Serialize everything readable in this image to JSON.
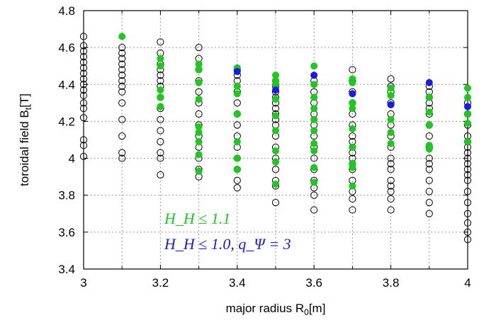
{
  "chart_data": {
    "type": "scatter",
    "xlabel": "major radius R",
    "xlabel_sub": "0",
    "xlabel_unit": "[m]",
    "ylabel": "toroidal field B",
    "ylabel_sub": "t",
    "ylabel_unit": "[T]",
    "xlim": [
      3,
      4
    ],
    "ylim": [
      3.4,
      4.8
    ],
    "xticks": [
      "3",
      "3.2",
      "3.4",
      "3.6",
      "3.8",
      "4"
    ],
    "yticks": [
      "3.4",
      "3.6",
      "3.8",
      "4",
      "4.2",
      "4.4",
      "4.6",
      "4.8"
    ],
    "grid": true,
    "colors": {
      "all": "#000000",
      "hh11": "#1ec81e",
      "hh10": "#1a1ae6"
    },
    "legend": [
      {
        "series": "hh11",
        "text": "H_H ≤ 1.1"
      },
      {
        "series": "hh10",
        "text": "H_H ≤ 1.0, q_Ψ = 3"
      }
    ],
    "series": [
      {
        "key": "all",
        "style": "open-circle",
        "points": [
          [
            3.0,
            4.66
          ],
          [
            3.0,
            4.61
          ],
          [
            3.0,
            4.58
          ],
          [
            3.0,
            4.55
          ],
          [
            3.0,
            4.52
          ],
          [
            3.0,
            4.49
          ],
          [
            3.0,
            4.46
          ],
          [
            3.0,
            4.43
          ],
          [
            3.0,
            4.4
          ],
          [
            3.0,
            4.37
          ],
          [
            3.0,
            4.34
          ],
          [
            3.0,
            4.3
          ],
          [
            3.0,
            4.27
          ],
          [
            3.0,
            4.22
          ],
          [
            3.0,
            4.1
          ],
          [
            3.0,
            4.07
          ],
          [
            3.0,
            4.01
          ],
          [
            3.1,
            4.6
          ],
          [
            3.1,
            4.57
          ],
          [
            3.1,
            4.54
          ],
          [
            3.1,
            4.51
          ],
          [
            3.1,
            4.48
          ],
          [
            3.1,
            4.45
          ],
          [
            3.1,
            4.42
          ],
          [
            3.1,
            4.39
          ],
          [
            3.1,
            4.36
          ],
          [
            3.1,
            4.3
          ],
          [
            3.1,
            4.21
          ],
          [
            3.1,
            4.12
          ],
          [
            3.1,
            4.03
          ],
          [
            3.1,
            4.0
          ],
          [
            3.2,
            4.63
          ],
          [
            3.2,
            4.57
          ],
          [
            3.2,
            4.51
          ],
          [
            3.2,
            4.48
          ],
          [
            3.2,
            4.45
          ],
          [
            3.2,
            4.42
          ],
          [
            3.2,
            4.39
          ],
          [
            3.2,
            4.33
          ],
          [
            3.2,
            4.27
          ],
          [
            3.2,
            4.21
          ],
          [
            3.2,
            4.15
          ],
          [
            3.2,
            4.09
          ],
          [
            3.2,
            4.03
          ],
          [
            3.2,
            4.0
          ],
          [
            3.2,
            3.91
          ],
          [
            3.3,
            4.6
          ],
          [
            3.3,
            4.54
          ],
          [
            3.3,
            4.48
          ],
          [
            3.3,
            4.42
          ],
          [
            3.3,
            4.36
          ],
          [
            3.3,
            4.3
          ],
          [
            3.3,
            4.24
          ],
          [
            3.3,
            4.18
          ],
          [
            3.3,
            4.12
          ],
          [
            3.3,
            4.06
          ],
          [
            3.3,
            4.0
          ],
          [
            3.3,
            3.94
          ],
          [
            3.3,
            3.9
          ],
          [
            3.4,
            4.48
          ],
          [
            3.4,
            4.45
          ],
          [
            3.4,
            4.42
          ],
          [
            3.4,
            4.36
          ],
          [
            3.4,
            4.3
          ],
          [
            3.4,
            4.24
          ],
          [
            3.4,
            4.18
          ],
          [
            3.4,
            4.12
          ],
          [
            3.4,
            4.06
          ],
          [
            3.4,
            4.0
          ],
          [
            3.4,
            3.94
          ],
          [
            3.4,
            3.88
          ],
          [
            3.4,
            3.84
          ],
          [
            3.5,
            4.42
          ],
          [
            3.5,
            4.39
          ],
          [
            3.5,
            4.36
          ],
          [
            3.5,
            4.33
          ],
          [
            3.5,
            4.3
          ],
          [
            3.5,
            4.27
          ],
          [
            3.5,
            4.24
          ],
          [
            3.5,
            4.21
          ],
          [
            3.5,
            4.18
          ],
          [
            3.5,
            4.12
          ],
          [
            3.5,
            4.06
          ],
          [
            3.5,
            4.0
          ],
          [
            3.5,
            3.94
          ],
          [
            3.5,
            3.88
          ],
          [
            3.5,
            3.85
          ],
          [
            3.5,
            3.76
          ],
          [
            3.6,
            4.42
          ],
          [
            3.6,
            4.36
          ],
          [
            3.6,
            4.3
          ],
          [
            3.6,
            4.24
          ],
          [
            3.6,
            4.18
          ],
          [
            3.6,
            4.12
          ],
          [
            3.6,
            4.06
          ],
          [
            3.6,
            4.0
          ],
          [
            3.6,
            3.94
          ],
          [
            3.6,
            3.88
          ],
          [
            3.6,
            3.84
          ],
          [
            3.6,
            3.8
          ],
          [
            3.6,
            3.72
          ],
          [
            3.7,
            4.48
          ],
          [
            3.7,
            4.42
          ],
          [
            3.7,
            4.36
          ],
          [
            3.7,
            4.3
          ],
          [
            3.7,
            4.24
          ],
          [
            3.7,
            4.18
          ],
          [
            3.7,
            4.12
          ],
          [
            3.7,
            4.09
          ],
          [
            3.7,
            4.06
          ],
          [
            3.7,
            4.03
          ],
          [
            3.7,
            4.0
          ],
          [
            3.7,
            3.97
          ],
          [
            3.7,
            3.94
          ],
          [
            3.7,
            3.88
          ],
          [
            3.7,
            3.82
          ],
          [
            3.7,
            3.78
          ],
          [
            3.7,
            3.72
          ],
          [
            3.8,
            4.43
          ],
          [
            3.8,
            4.39
          ],
          [
            3.8,
            4.36
          ],
          [
            3.8,
            4.3
          ],
          [
            3.8,
            4.24
          ],
          [
            3.8,
            4.18
          ],
          [
            3.8,
            4.12
          ],
          [
            3.8,
            4.06
          ],
          [
            3.8,
            4.0
          ],
          [
            3.8,
            3.97
          ],
          [
            3.8,
            3.94
          ],
          [
            3.8,
            3.88
          ],
          [
            3.8,
            3.85
          ],
          [
            3.8,
            3.82
          ],
          [
            3.8,
            3.78
          ],
          [
            3.8,
            3.72
          ],
          [
            3.9,
            4.39
          ],
          [
            3.9,
            4.36
          ],
          [
            3.9,
            4.33
          ],
          [
            3.9,
            4.3
          ],
          [
            3.9,
            4.27
          ],
          [
            3.9,
            4.24
          ],
          [
            3.9,
            4.18
          ],
          [
            3.9,
            4.12
          ],
          [
            3.9,
            4.06
          ],
          [
            3.9,
            4.0
          ],
          [
            3.9,
            3.97
          ],
          [
            3.9,
            3.94
          ],
          [
            3.9,
            3.88
          ],
          [
            3.9,
            3.82
          ],
          [
            3.9,
            3.76
          ],
          [
            3.9,
            3.7
          ],
          [
            4.0,
            4.3
          ],
          [
            4.0,
            4.24
          ],
          [
            4.0,
            4.18
          ],
          [
            4.0,
            4.12
          ],
          [
            4.0,
            4.09
          ],
          [
            4.0,
            4.06
          ],
          [
            4.0,
            4.03
          ],
          [
            4.0,
            4.0
          ],
          [
            4.0,
            3.97
          ],
          [
            4.0,
            3.94
          ],
          [
            4.0,
            3.91
          ],
          [
            4.0,
            3.88
          ],
          [
            4.0,
            3.82
          ],
          [
            4.0,
            3.76
          ],
          [
            4.0,
            3.7
          ],
          [
            4.0,
            3.65
          ],
          [
            4.0,
            3.6
          ],
          [
            4.0,
            3.56
          ]
        ]
      },
      {
        "key": "hh11",
        "style": "filled",
        "points": [
          [
            3.1,
            4.66
          ],
          [
            3.2,
            4.54
          ],
          [
            3.2,
            4.5
          ],
          [
            3.2,
            4.37
          ],
          [
            3.2,
            4.33
          ],
          [
            3.2,
            4.28
          ],
          [
            3.3,
            4.51
          ],
          [
            3.3,
            4.48
          ],
          [
            3.3,
            4.41
          ],
          [
            3.3,
            4.32
          ],
          [
            3.3,
            4.17
          ],
          [
            3.3,
            4.14
          ],
          [
            3.3,
            4.09
          ],
          [
            3.3,
            4.02
          ],
          [
            3.3,
            3.93
          ],
          [
            3.4,
            4.49
          ],
          [
            3.4,
            4.39
          ],
          [
            3.4,
            4.35
          ],
          [
            3.4,
            4.24
          ],
          [
            3.4,
            4.09
          ],
          [
            3.4,
            4.0
          ],
          [
            3.4,
            3.94
          ],
          [
            3.5,
            4.45
          ],
          [
            3.5,
            4.42
          ],
          [
            3.5,
            4.4
          ],
          [
            3.5,
            4.32
          ],
          [
            3.5,
            4.23
          ],
          [
            3.5,
            4.15
          ],
          [
            3.5,
            4.04
          ],
          [
            3.5,
            3.98
          ],
          [
            3.5,
            3.86
          ],
          [
            3.6,
            4.5
          ],
          [
            3.6,
            4.4
          ],
          [
            3.6,
            4.33
          ],
          [
            3.6,
            4.27
          ],
          [
            3.6,
            4.21
          ],
          [
            3.6,
            4.15
          ],
          [
            3.6,
            4.08
          ],
          [
            3.6,
            4.04
          ],
          [
            3.6,
            3.95
          ],
          [
            3.6,
            3.87
          ],
          [
            3.7,
            4.43
          ],
          [
            3.7,
            4.41
          ],
          [
            3.7,
            4.3
          ],
          [
            3.7,
            4.27
          ],
          [
            3.7,
            4.16
          ],
          [
            3.7,
            4.06
          ],
          [
            3.7,
            3.97
          ],
          [
            3.7,
            3.95
          ],
          [
            3.7,
            3.85
          ],
          [
            3.8,
            4.38
          ],
          [
            3.8,
            4.34
          ],
          [
            3.8,
            4.21
          ],
          [
            3.8,
            4.14
          ],
          [
            3.8,
            4.08
          ],
          [
            3.9,
            4.33
          ],
          [
            3.9,
            4.25
          ],
          [
            3.9,
            4.18
          ],
          [
            3.9,
            4.07
          ],
          [
            3.9,
            4.05
          ],
          [
            4.0,
            4.38
          ],
          [
            4.0,
            4.33
          ],
          [
            4.0,
            4.24
          ],
          [
            4.0,
            4.19
          ],
          [
            4.0,
            4.09
          ]
        ]
      },
      {
        "key": "hh10",
        "style": "filled",
        "points": [
          [
            3.4,
            4.47
          ],
          [
            3.5,
            4.37
          ],
          [
            3.6,
            4.45
          ],
          [
            3.7,
            4.35
          ],
          [
            3.8,
            4.29
          ],
          [
            3.9,
            4.41
          ],
          [
            4.0,
            4.28
          ]
        ]
      }
    ]
  }
}
